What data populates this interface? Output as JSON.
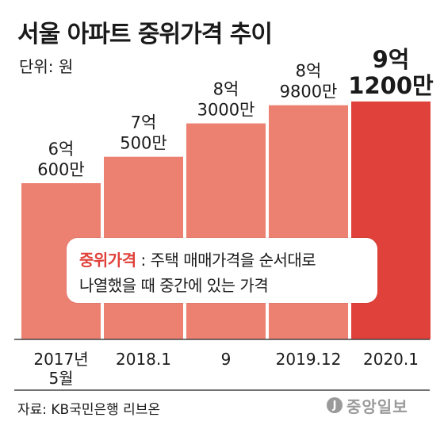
{
  "title": "서울 아파트 중위가격 추이",
  "unit_label": "단위: 원",
  "chart_data": {
    "type": "bar",
    "categories": [
      [
        "2017년",
        "5월"
      ],
      [
        "2018.1"
      ],
      [
        "9"
      ],
      [
        "2019.12"
      ],
      [
        "2020.1"
      ]
    ],
    "values": [
      606000000,
      705000000,
      830000000,
      898000000,
      912000000
    ],
    "value_labels": [
      [
        "6억",
        "600만"
      ],
      [
        "7억",
        "500만"
      ],
      [
        "8억",
        "3000만"
      ],
      [
        "8억",
        "9800만"
      ],
      [
        "9억",
        "1200만"
      ]
    ],
    "highlight_index": 4,
    "colors": {
      "bar": "#ec8172",
      "highlight": "#e0413a",
      "text": "#1a1a1a"
    }
  },
  "callout": {
    "term": "중위가격",
    "line1_rest": " : 주택 매매가격을 순서대로",
    "line2": "나열했을 때 중간에 있는 가격"
  },
  "source": "자료: KB국민은행 리브온",
  "logo": {
    "icon": "joongang-circle-icon",
    "mark": "J",
    "text": "중앙일보"
  }
}
